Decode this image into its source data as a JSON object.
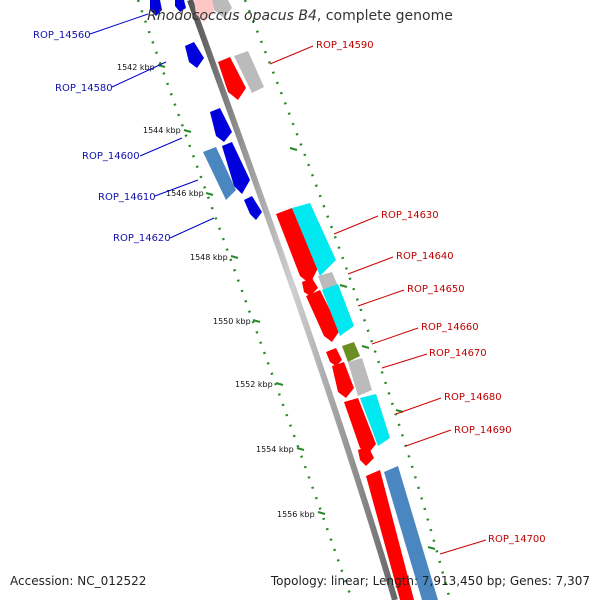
{
  "title": {
    "organism": "Rhodococcus opacus B4",
    "suffix": ", complete genome"
  },
  "footer": {
    "accession": "Accession: NC_012522",
    "summary": "Topology: linear; Length: 7,913,450 bp; Genes: 7,307"
  },
  "scale_labels": [
    "1542 kbp",
    "1544 kbp",
    "1546 kbp",
    "1548 kbp",
    "1550 kbp",
    "1552 kbp",
    "1554 kbp",
    "1556 kbp"
  ],
  "genes_left": [
    {
      "label": "ROP_14560",
      "color": "#0000dd"
    },
    {
      "label": "ROP_14580",
      "color": "#0000dd"
    },
    {
      "label": "ROP_14600",
      "color": "#0000dd"
    },
    {
      "label": "ROP_14610",
      "color": "#4a86c0"
    },
    {
      "label": "ROP_14620",
      "color": "#0000dd"
    }
  ],
  "genes_right": [
    {
      "label": "ROP_14590",
      "color": "#ff0000"
    },
    {
      "label": "ROP_14630",
      "color": "#ff0000"
    },
    {
      "label": "ROP_14640",
      "color": "#bbbbbb"
    },
    {
      "label": "ROP_14650",
      "color": "#00e8f0"
    },
    {
      "label": "ROP_14660",
      "color": "#ff0000"
    },
    {
      "label": "ROP_14670",
      "color": "#6b8e23"
    },
    {
      "label": "ROP_14680",
      "color": "#ff0000"
    },
    {
      "label": "ROP_14690",
      "color": "#00e8f0"
    },
    {
      "label": "ROP_14700",
      "color": "#4a86c0"
    }
  ],
  "colors": {
    "label_left": "#1010b0",
    "label_right": "#c00000",
    "tick": "#2a8a2a",
    "backbone": "#888888"
  }
}
